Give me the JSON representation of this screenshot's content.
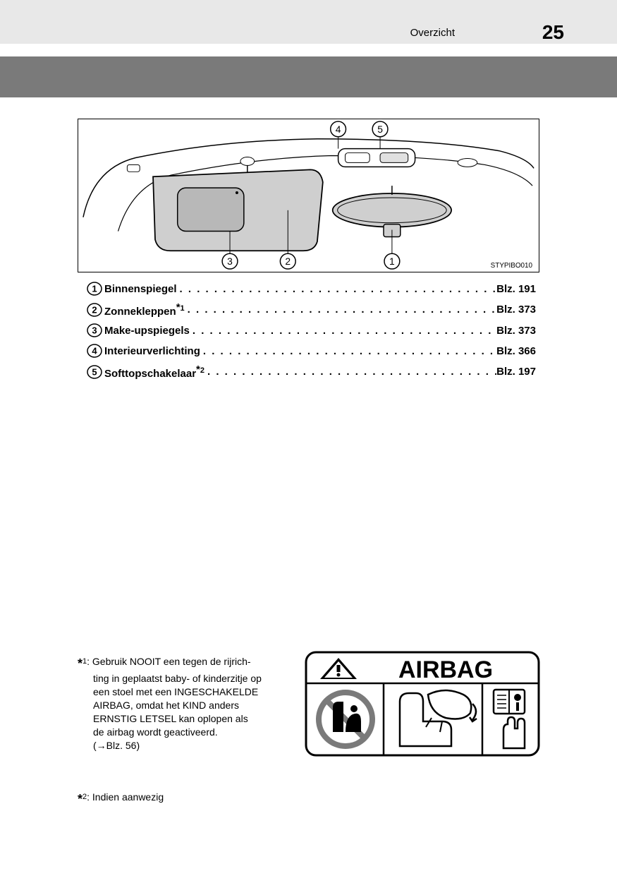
{
  "header": {
    "section_label": "Overzicht",
    "page_number": "25"
  },
  "diagram": {
    "callouts": [
      "1",
      "2",
      "3",
      "4",
      "5"
    ],
    "image_code": "STYPIBO010"
  },
  "index_list": [
    {
      "num": "1",
      "label": "Binnenspiegel",
      "sup": "",
      "page_prefix": "Blz.",
      "page": "191"
    },
    {
      "num": "2",
      "label": "Zonnekleppen",
      "sup": "*1",
      "page_prefix": "Blz.",
      "page": "373"
    },
    {
      "num": "3",
      "label": "Make-upspiegels",
      "sup": "",
      "page_prefix": "Blz.",
      "page": "373"
    },
    {
      "num": "4",
      "label": "Interieurverlichting",
      "sup": "",
      "page_prefix": "Blz.",
      "page": "366"
    },
    {
      "num": "5",
      "label": "Softtopschakelaar",
      "sup": "*2",
      "page_prefix": "Blz.",
      "page": "197"
    }
  ],
  "footnotes": {
    "fn1": {
      "marker": "*",
      "marker_sup": "1",
      "lead": ": ",
      "text_lines": [
        "Gebruik NOOIT een tegen de rijrich-",
        "ting in geplaatst baby- of kinderzitje op",
        "een stoel met een INGESCHAKELDE",
        "AIRBAG, omdat het KIND anders",
        "ERNSTIG LETSEL kan oplopen als",
        "de airbag wordt geactiveerd.",
        "(→Blz. 56)"
      ]
    },
    "fn2": {
      "marker": "*",
      "marker_sup": "2",
      "lead": ": ",
      "text": "Indien aanwezig"
    }
  },
  "airbag_label": {
    "title": "AIRBAG",
    "icons": [
      "warning-triangle",
      "no-rear-facing-seat",
      "seat-airbag-deploy",
      "manual-book-hand"
    ],
    "colors": {
      "border": "#000000",
      "background": "#ffffff",
      "panel_fill": "#eeeeee",
      "prohibit_ring": "#7a7a7a"
    }
  },
  "style": {
    "page_bg": "#ffffff",
    "header_bg": "#e8e8e8",
    "band_bg": "#7a7a7a",
    "text_color": "#000000",
    "diagram_shade": "#cfcfcf"
  }
}
